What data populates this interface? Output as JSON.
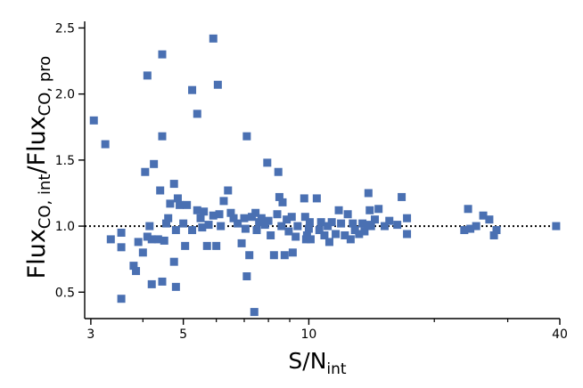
{
  "chart_data": {
    "type": "scatter",
    "x_scale": "log",
    "xlim": [
      2.9,
      40
    ],
    "ylim": [
      0.3,
      2.55
    ],
    "xticks": [
      3,
      5,
      10,
      40
    ],
    "xtick_labels": [
      "3",
      "5",
      "10",
      "40"
    ],
    "xminor_ticks": [
      4,
      6,
      7,
      8,
      9,
      20,
      30
    ],
    "yticks": [
      0.5,
      1.0,
      1.5,
      2.0,
      2.5
    ],
    "ytick_labels": [
      "0.5",
      "1.0",
      "1.5",
      "2.0",
      "2.5"
    ],
    "xlabel": {
      "main": "S/N",
      "sub": "int"
    },
    "ylabel": {
      "p1": "Flux",
      "s1": "CO, int",
      "p2": "/Flux",
      "s2": "CO, pro"
    },
    "reference_line": {
      "y": 1.0,
      "style": "dotted"
    },
    "marker_color": "#4a70b2",
    "points": [
      [
        3.05,
        1.8
      ],
      [
        3.25,
        1.62
      ],
      [
        3.35,
        0.9
      ],
      [
        3.55,
        0.45
      ],
      [
        3.55,
        0.95
      ],
      [
        3.55,
        0.84
      ],
      [
        3.8,
        0.7
      ],
      [
        3.85,
        0.66
      ],
      [
        3.9,
        0.88
      ],
      [
        4.0,
        0.8
      ],
      [
        4.05,
        1.41
      ],
      [
        4.1,
        2.14
      ],
      [
        4.1,
        0.92
      ],
      [
        4.15,
        1.0
      ],
      [
        4.2,
        0.9
      ],
      [
        4.2,
        0.56
      ],
      [
        4.25,
        1.47
      ],
      [
        4.35,
        0.9
      ],
      [
        4.45,
        2.3
      ],
      [
        4.45,
        1.68
      ],
      [
        4.4,
        1.27
      ],
      [
        4.45,
        0.58
      ],
      [
        4.5,
        0.89
      ],
      [
        4.55,
        1.02
      ],
      [
        4.6,
        1.06
      ],
      [
        4.65,
        1.17
      ],
      [
        4.75,
        1.32
      ],
      [
        4.75,
        0.73
      ],
      [
        4.8,
        0.54
      ],
      [
        4.8,
        0.97
      ],
      [
        4.85,
        1.21
      ],
      [
        4.9,
        1.16
      ],
      [
        5.0,
        1.02
      ],
      [
        5.05,
        0.85
      ],
      [
        5.1,
        1.16
      ],
      [
        5.25,
        2.03
      ],
      [
        5.25,
        0.97
      ],
      [
        5.4,
        1.85
      ],
      [
        5.4,
        1.12
      ],
      [
        5.5,
        1.06
      ],
      [
        5.55,
        0.99
      ],
      [
        5.6,
        1.11
      ],
      [
        5.7,
        0.85
      ],
      [
        5.75,
        1.01
      ],
      [
        5.9,
        2.42
      ],
      [
        5.9,
        1.08
      ],
      [
        6.0,
        0.85
      ],
      [
        6.05,
        2.07
      ],
      [
        6.1,
        1.09
      ],
      [
        6.15,
        1.0
      ],
      [
        6.25,
        1.19
      ],
      [
        6.4,
        1.27
      ],
      [
        6.5,
        1.1
      ],
      [
        6.6,
        1.06
      ],
      [
        6.75,
        1.02
      ],
      [
        6.9,
        0.87
      ],
      [
        7.0,
        1.06
      ],
      [
        7.05,
        0.98
      ],
      [
        7.1,
        1.68
      ],
      [
        7.1,
        0.62
      ],
      [
        7.2,
        0.78
      ],
      [
        7.3,
        1.07
      ],
      [
        7.4,
        0.35
      ],
      [
        7.45,
        1.1
      ],
      [
        7.5,
        0.97
      ],
      [
        7.6,
        1.03
      ],
      [
        7.7,
        1.06
      ],
      [
        7.85,
        1.01
      ],
      [
        7.95,
        1.48
      ],
      [
        8.0,
        1.04
      ],
      [
        8.1,
        0.93
      ],
      [
        8.25,
        0.78
      ],
      [
        8.4,
        1.09
      ],
      [
        8.45,
        1.41
      ],
      [
        8.5,
        1.22
      ],
      [
        8.6,
        1.0
      ],
      [
        8.65,
        1.18
      ],
      [
        8.75,
        0.78
      ],
      [
        8.85,
        1.05
      ],
      [
        8.95,
        0.96
      ],
      [
        9.1,
        1.07
      ],
      [
        9.15,
        0.8
      ],
      [
        9.3,
        0.92
      ],
      [
        9.4,
        1.0
      ],
      [
        9.75,
        1.21
      ],
      [
        9.8,
        1.07
      ],
      [
        9.85,
        0.9
      ],
      [
        9.9,
        0.93
      ],
      [
        10.0,
        0.98
      ],
      [
        10.05,
        1.03
      ],
      [
        10.1,
        0.9
      ],
      [
        10.45,
        1.21
      ],
      [
        10.6,
        0.97
      ],
      [
        10.7,
        1.03
      ],
      [
        10.9,
        0.93
      ],
      [
        11.1,
        1.0
      ],
      [
        11.2,
        0.88
      ],
      [
        11.35,
        1.03
      ],
      [
        11.6,
        0.94
      ],
      [
        11.8,
        1.12
      ],
      [
        11.95,
        1.02
      ],
      [
        12.2,
        0.93
      ],
      [
        12.4,
        1.09
      ],
      [
        12.6,
        0.9
      ],
      [
        12.75,
        1.02
      ],
      [
        12.9,
        0.97
      ],
      [
        13.2,
        0.94
      ],
      [
        13.45,
        1.02
      ],
      [
        13.6,
        0.96
      ],
      [
        13.85,
        1.01
      ],
      [
        13.9,
        1.25
      ],
      [
        14.0,
        1.12
      ],
      [
        14.1,
        1.0
      ],
      [
        14.4,
        1.05
      ],
      [
        14.7,
        1.13
      ],
      [
        15.2,
        1.0
      ],
      [
        15.6,
        1.04
      ],
      [
        16.3,
        1.01
      ],
      [
        16.7,
        1.22
      ],
      [
        17.2,
        0.94
      ],
      [
        17.2,
        1.06
      ],
      [
        23.6,
        0.97
      ],
      [
        24.1,
        1.13
      ],
      [
        24.4,
        0.98
      ],
      [
        25.2,
        1.0
      ],
      [
        26.2,
        1.08
      ],
      [
        27.1,
        1.05
      ],
      [
        27.8,
        0.93
      ],
      [
        28.2,
        0.97
      ],
      [
        39.2,
        1.0
      ]
    ]
  }
}
